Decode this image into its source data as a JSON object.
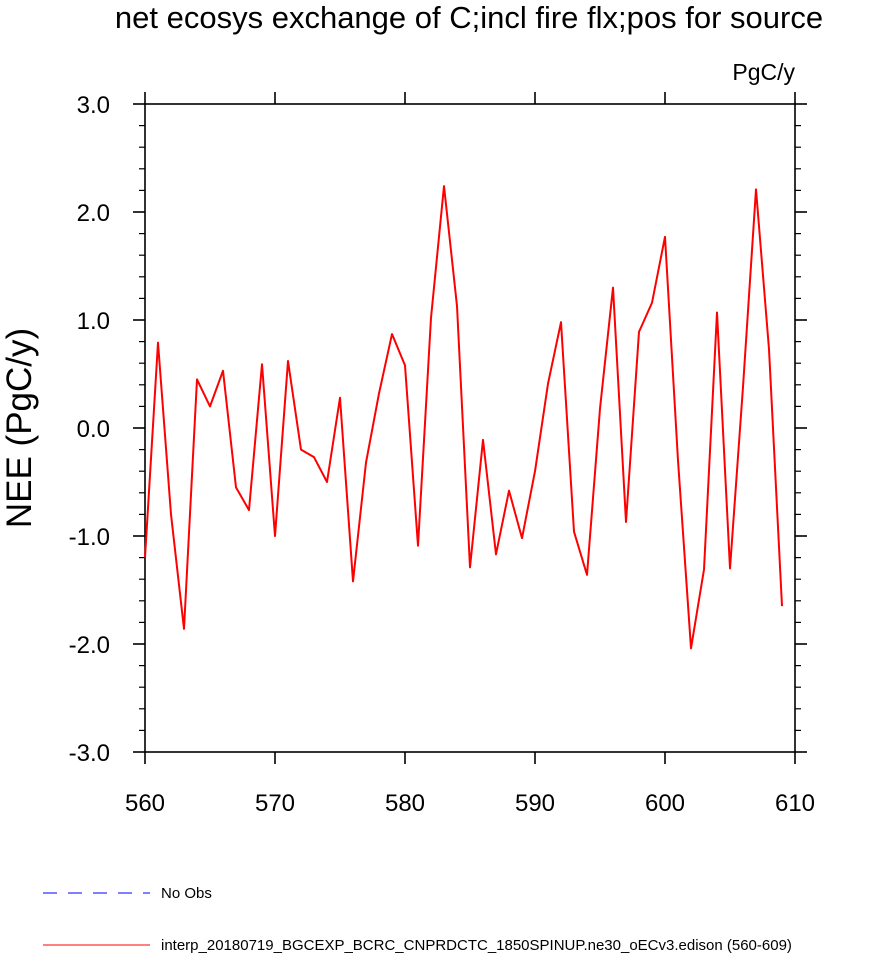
{
  "chart_data": {
    "type": "line",
    "title": "net ecosys exchange of C;incl fire flx;pos for source",
    "units_label": "PgC/y",
    "ylabel": "NEE  (PgC/y)",
    "xlabel": "",
    "xlim": [
      560,
      610
    ],
    "ylim": [
      -3.0,
      3.0
    ],
    "x_ticks": [
      560,
      570,
      580,
      590,
      600,
      610
    ],
    "x_tick_labels": [
      "560",
      "570",
      "580",
      "590",
      "600",
      "610"
    ],
    "y_ticks": [
      3.0,
      2.0,
      1.0,
      0.0,
      -1.0,
      -2.0,
      -3.0
    ],
    "y_tick_labels": [
      "3.0",
      "2.0",
      "1.0",
      "0.0",
      "-1.0",
      "-2.0",
      "-3.0"
    ],
    "grid": false,
    "legend_position": "bottom-left",
    "series": [
      {
        "name": "interp_20180719_BGCEXP_BCRC_CNPRDCTC_1850SPINUP.ne30_oECv3.edison (560-609)",
        "color": "#ff0000",
        "style": "solid",
        "x": [
          560,
          561,
          562,
          563,
          564,
          565,
          566,
          567,
          568,
          569,
          570,
          571,
          572,
          573,
          574,
          575,
          576,
          577,
          578,
          579,
          580,
          581,
          582,
          583,
          584,
          585,
          586,
          587,
          588,
          589,
          590,
          591,
          592,
          593,
          594,
          595,
          596,
          597,
          598,
          599,
          600,
          601,
          602,
          603,
          604,
          605,
          606,
          607,
          608,
          609
        ],
        "values": [
          -1.2,
          0.79,
          -0.8,
          -1.86,
          0.45,
          0.2,
          0.53,
          -0.55,
          -0.76,
          0.59,
          -1.0,
          0.62,
          -0.2,
          -0.27,
          -0.5,
          0.28,
          -1.42,
          -0.32,
          0.32,
          0.87,
          0.58,
          -1.09,
          1.02,
          2.24,
          1.13,
          -1.29,
          -0.11,
          -1.17,
          -0.58,
          -1.02,
          -0.4,
          0.41,
          0.98,
          -0.96,
          -1.36,
          0.18,
          1.3,
          -0.87,
          0.89,
          1.16,
          1.77,
          -0.3,
          -2.04,
          -1.31,
          1.07,
          -1.3,
          0.38,
          2.21,
          0.73,
          -1.65
        ]
      },
      {
        "name": "No Obs",
        "color": "#0000ff",
        "style": "dashed",
        "x": [],
        "values": []
      }
    ]
  }
}
